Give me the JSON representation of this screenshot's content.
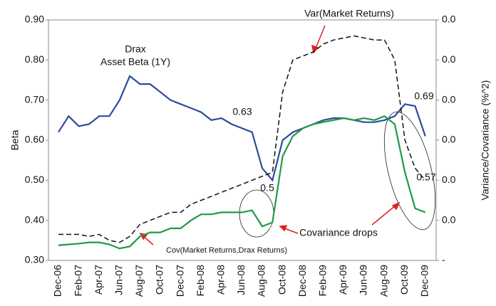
{
  "chart_data": {
    "type": "line",
    "y_label": "Beta",
    "y2_label": "Variance/Covariance (%^2)",
    "categories": [
      "Dec-06",
      null,
      "Feb-07",
      null,
      "Apr-07",
      null,
      "Jun-07",
      null,
      "Aug-07",
      null,
      "Oct-07",
      null,
      "Dec-07",
      null,
      "Feb-08",
      null,
      "Apr-08",
      null,
      "Jun-08",
      null,
      "Aug-08",
      null,
      "Oct-08",
      null,
      "Dec-08",
      null,
      "Feb-09",
      null,
      "Apr-09",
      null,
      "Jun-09",
      null,
      "Aug-09",
      null,
      "Oct-09",
      null,
      "Dec-09"
    ],
    "ylim": [
      0.3,
      0.9
    ],
    "yticks": [
      {
        "value": 0.3,
        "label": "0.30"
      },
      {
        "value": 0.4,
        "label": "0.40"
      },
      {
        "value": 0.5,
        "label": "0.50"
      },
      {
        "value": 0.6,
        "label": "0.60"
      },
      {
        "value": 0.7,
        "label": "0.70"
      },
      {
        "value": 0.8,
        "label": "0.80"
      },
      {
        "value": 0.9,
        "label": "0.90"
      }
    ],
    "y2lim": [
      0,
      0.06
    ],
    "y2ticks": [
      {
        "value": 0,
        "label": "-"
      },
      {
        "value": 0.01,
        "label": "0.0"
      },
      {
        "value": 0.02,
        "label": "0.0"
      },
      {
        "value": 0.03,
        "label": "0.0"
      },
      {
        "value": 0.04,
        "label": "0.0"
      },
      {
        "value": 0.05,
        "label": "0.0"
      },
      {
        "value": 0.06,
        "label": "0.0"
      }
    ],
    "series": [
      {
        "name": "Drax Asset Beta (1Y)",
        "color": "#2e4a9e",
        "dash": false,
        "values": [
          0.62,
          0.66,
          0.635,
          0.64,
          0.66,
          0.66,
          0.7,
          0.76,
          0.74,
          0.74,
          0.72,
          0.7,
          0.69,
          0.68,
          0.67,
          0.65,
          0.655,
          0.64,
          0.63,
          0.62,
          0.53,
          0.5,
          0.6,
          0.62,
          0.63,
          0.64,
          0.65,
          0.655,
          0.655,
          0.65,
          0.645,
          0.645,
          0.65,
          0.66,
          0.69,
          0.685,
          0.61
        ]
      },
      {
        "name": "Var(Market Returns)",
        "color": "#111111",
        "dash": true,
        "axis": "y2",
        "values": [
          0.0065,
          0.0065,
          0.0065,
          0.006,
          0.0065,
          0.005,
          0.0045,
          0.006,
          0.009,
          0.01,
          0.011,
          0.012,
          0.012,
          0.014,
          0.015,
          0.016,
          0.017,
          0.018,
          0.019,
          0.02,
          0.021,
          0.022,
          0.042,
          0.05,
          0.051,
          0.052,
          0.054,
          0.055,
          0.0555,
          0.056,
          0.0555,
          0.055,
          0.055,
          0.05,
          0.03,
          0.023,
          0.02
        ]
      },
      {
        "name": "Cov(Market Returns,Drax Returns)",
        "color": "#1f9a46",
        "dash": false,
        "axis": "y2",
        "values": [
          0.0038,
          0.004,
          0.0042,
          0.0045,
          0.0045,
          0.004,
          0.003,
          0.0035,
          0.006,
          0.007,
          0.007,
          0.008,
          0.008,
          0.01,
          0.0115,
          0.0115,
          0.012,
          0.012,
          0.012,
          0.0125,
          0.0085,
          0.0095,
          0.026,
          0.031,
          0.033,
          0.034,
          0.0345,
          0.035,
          0.0355,
          0.035,
          0.0355,
          0.035,
          0.036,
          0.034,
          0.022,
          0.013,
          0.012
        ]
      }
    ],
    "annotations": [
      "Drax",
      "Asset Beta (1Y)",
      "0.63",
      "0.5",
      "0.69",
      "0.57",
      "Covariance drops"
    ]
  }
}
